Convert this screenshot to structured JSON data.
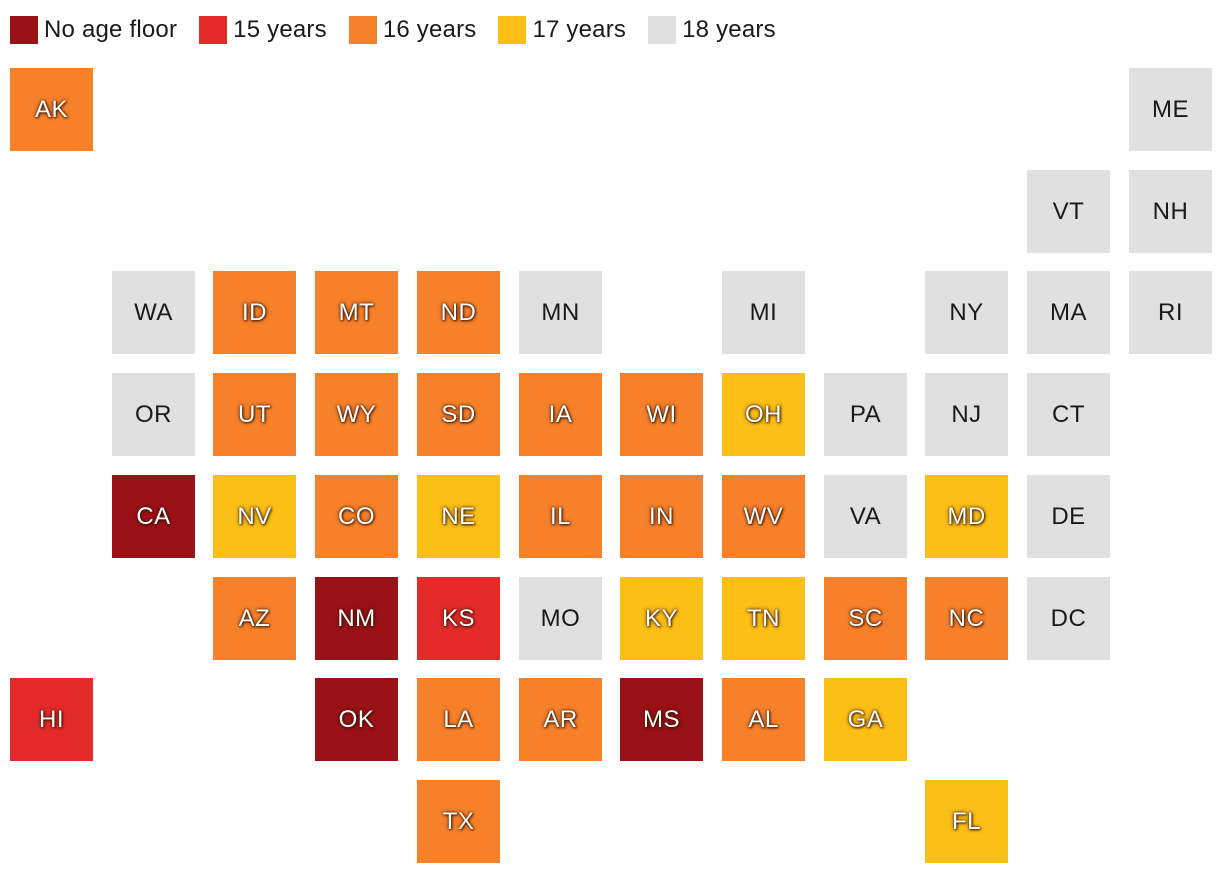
{
  "legend": [
    {
      "key": "none",
      "label": "No age floor",
      "color": "#9b1118"
    },
    {
      "key": "15",
      "label": "15 years",
      "color": "#e32b2a"
    },
    {
      "key": "16",
      "label": "16 years",
      "color": "#f7812a"
    },
    {
      "key": "17",
      "label": "17 years",
      "color": "#fcbf16"
    },
    {
      "key": "18",
      "label": "18 years",
      "color": "#e0e0e0"
    }
  ],
  "states": [
    {
      "abbr": "AK",
      "category": "16",
      "col": 0,
      "row": 0
    },
    {
      "abbr": "ME",
      "category": "18",
      "col": 11,
      "row": 0
    },
    {
      "abbr": "VT",
      "category": "18",
      "col": 10,
      "row": 1
    },
    {
      "abbr": "NH",
      "category": "18",
      "col": 11,
      "row": 1
    },
    {
      "abbr": "WA",
      "category": "18",
      "col": 1,
      "row": 2
    },
    {
      "abbr": "ID",
      "category": "16",
      "col": 2,
      "row": 2
    },
    {
      "abbr": "MT",
      "category": "16",
      "col": 3,
      "row": 2
    },
    {
      "abbr": "ND",
      "category": "16",
      "col": 4,
      "row": 2
    },
    {
      "abbr": "MN",
      "category": "18",
      "col": 5,
      "row": 2
    },
    {
      "abbr": "MI",
      "category": "18",
      "col": 7,
      "row": 2
    },
    {
      "abbr": "NY",
      "category": "18",
      "col": 9,
      "row": 2
    },
    {
      "abbr": "MA",
      "category": "18",
      "col": 10,
      "row": 2
    },
    {
      "abbr": "RI",
      "category": "18",
      "col": 11,
      "row": 2
    },
    {
      "abbr": "OR",
      "category": "18",
      "col": 1,
      "row": 3
    },
    {
      "abbr": "UT",
      "category": "16",
      "col": 2,
      "row": 3
    },
    {
      "abbr": "WY",
      "category": "16",
      "col": 3,
      "row": 3
    },
    {
      "abbr": "SD",
      "category": "16",
      "col": 4,
      "row": 3
    },
    {
      "abbr": "IA",
      "category": "16",
      "col": 5,
      "row": 3
    },
    {
      "abbr": "WI",
      "category": "16",
      "col": 6,
      "row": 3
    },
    {
      "abbr": "OH",
      "category": "17",
      "col": 7,
      "row": 3
    },
    {
      "abbr": "PA",
      "category": "18",
      "col": 8,
      "row": 3
    },
    {
      "abbr": "NJ",
      "category": "18",
      "col": 9,
      "row": 3
    },
    {
      "abbr": "CT",
      "category": "18",
      "col": 10,
      "row": 3
    },
    {
      "abbr": "CA",
      "category": "none",
      "col": 1,
      "row": 4
    },
    {
      "abbr": "NV",
      "category": "17",
      "col": 2,
      "row": 4
    },
    {
      "abbr": "CO",
      "category": "16",
      "col": 3,
      "row": 4
    },
    {
      "abbr": "NE",
      "category": "17",
      "col": 4,
      "row": 4
    },
    {
      "abbr": "IL",
      "category": "16",
      "col": 5,
      "row": 4
    },
    {
      "abbr": "IN",
      "category": "16",
      "col": 6,
      "row": 4
    },
    {
      "abbr": "WV",
      "category": "16",
      "col": 7,
      "row": 4
    },
    {
      "abbr": "VA",
      "category": "18",
      "col": 8,
      "row": 4
    },
    {
      "abbr": "MD",
      "category": "17",
      "col": 9,
      "row": 4
    },
    {
      "abbr": "DE",
      "category": "18",
      "col": 10,
      "row": 4
    },
    {
      "abbr": "AZ",
      "category": "16",
      "col": 2,
      "row": 5
    },
    {
      "abbr": "NM",
      "category": "none",
      "col": 3,
      "row": 5
    },
    {
      "abbr": "KS",
      "category": "15",
      "col": 4,
      "row": 5
    },
    {
      "abbr": "MO",
      "category": "18",
      "col": 5,
      "row": 5
    },
    {
      "abbr": "KY",
      "category": "17",
      "col": 6,
      "row": 5
    },
    {
      "abbr": "TN",
      "category": "17",
      "col": 7,
      "row": 5
    },
    {
      "abbr": "SC",
      "category": "16",
      "col": 8,
      "row": 5
    },
    {
      "abbr": "NC",
      "category": "16",
      "col": 9,
      "row": 5
    },
    {
      "abbr": "DC",
      "category": "18",
      "col": 10,
      "row": 5
    },
    {
      "abbr": "HI",
      "category": "15",
      "col": 0,
      "row": 6
    },
    {
      "abbr": "OK",
      "category": "none",
      "col": 3,
      "row": 6
    },
    {
      "abbr": "LA",
      "category": "16",
      "col": 4,
      "row": 6
    },
    {
      "abbr": "AR",
      "category": "16",
      "col": 5,
      "row": 6
    },
    {
      "abbr": "MS",
      "category": "none",
      "col": 6,
      "row": 6
    },
    {
      "abbr": "AL",
      "category": "16",
      "col": 7,
      "row": 6
    },
    {
      "abbr": "GA",
      "category": "17",
      "col": 8,
      "row": 6
    },
    {
      "abbr": "TX",
      "category": "16",
      "col": 4,
      "row": 7
    },
    {
      "abbr": "FL",
      "category": "17",
      "col": 9,
      "row": 7
    }
  ]
}
